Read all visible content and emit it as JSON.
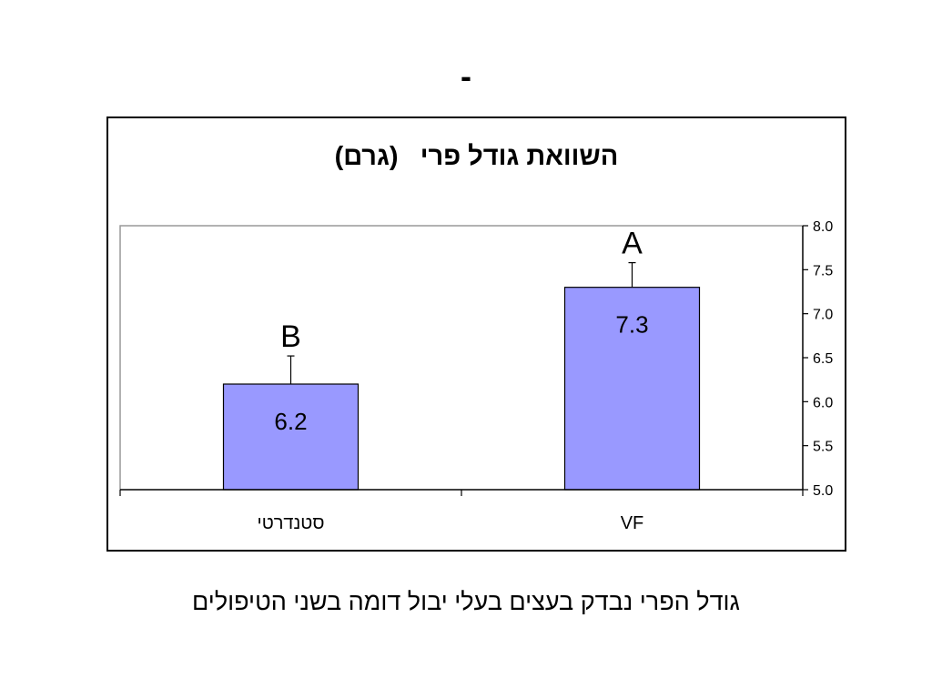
{
  "slide": {
    "title": "-",
    "caption": "גודל הפרי נבדק בעצים בעלי יבול דומה בשני הטיפולים"
  },
  "chart_data": {
    "type": "bar",
    "title": "השוואת גודל פרי   (גרם)",
    "categories": [
      "סטנדרטי",
      "VF"
    ],
    "values": [
      6.2,
      7.3
    ],
    "value_labels": [
      "6.2",
      "7.3"
    ],
    "error_upper": [
      6.52,
      7.58
    ],
    "significance_letters": [
      "B",
      "A"
    ],
    "ylim": [
      5.0,
      8.0
    ],
    "yticks": [
      "5.0",
      "5.5",
      "6.0",
      "6.5",
      "7.0",
      "7.5",
      "8.0"
    ],
    "y_axis_side": "right",
    "bar_color": "#9999ff",
    "grid": false,
    "legend": "none"
  }
}
